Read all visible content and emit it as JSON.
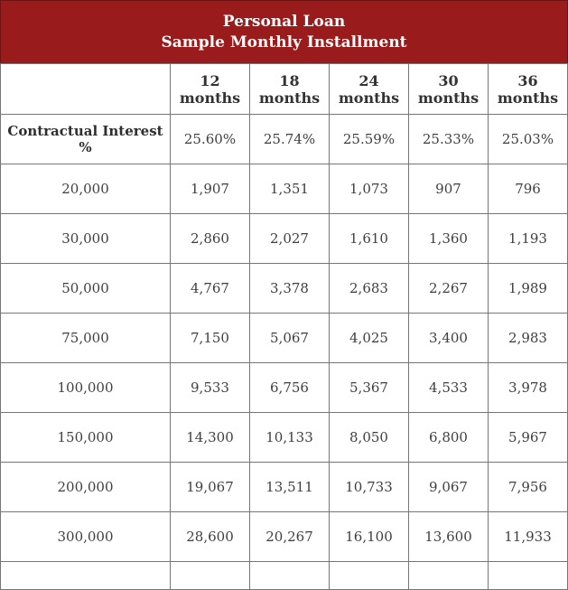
{
  "banner": {
    "line1": "Personal Loan",
    "line2": "Sample Monthly Installment"
  },
  "columns": [
    "",
    "12 months",
    "18 months",
    "24 months",
    "30 months",
    "36 months"
  ],
  "interest": {
    "label": "Contractual Interest %",
    "values": [
      "25.60%",
      "25.74%",
      "25.59%",
      "25.33%",
      "25.03%"
    ]
  },
  "rows": [
    {
      "amount": "20,000",
      "values": [
        "1,907",
        "1,351",
        "1,073",
        "907",
        "796"
      ]
    },
    {
      "amount": "30,000",
      "values": [
        "2,860",
        "2,027",
        "1,610",
        "1,360",
        "1,193"
      ]
    },
    {
      "amount": "50,000",
      "values": [
        "4,767",
        "3,378",
        "2,683",
        "2,267",
        "1,989"
      ]
    },
    {
      "amount": "75,000",
      "values": [
        "7,150",
        "5,067",
        "4,025",
        "3,400",
        "2,983"
      ]
    },
    {
      "amount": "100,000",
      "values": [
        "9,533",
        "6,756",
        "5,367",
        "4,533",
        "3,978"
      ]
    },
    {
      "amount": "150,000",
      "values": [
        "14,300",
        "10,133",
        "8,050",
        "6,800",
        "5,967"
      ]
    },
    {
      "amount": "200,000",
      "values": [
        "19,067",
        "13,511",
        "10,733",
        "9,067",
        "7,956"
      ]
    },
    {
      "amount": "300,000",
      "values": [
        "28,600",
        "20,267",
        "16,100",
        "13,600",
        "11,933"
      ]
    }
  ],
  "colors": {
    "banner_bg": "#9a1b1b",
    "banner_text": "#ffffff",
    "cell_border": "#767676",
    "header_text": "#333333",
    "value_text": "#3f3f3f"
  }
}
